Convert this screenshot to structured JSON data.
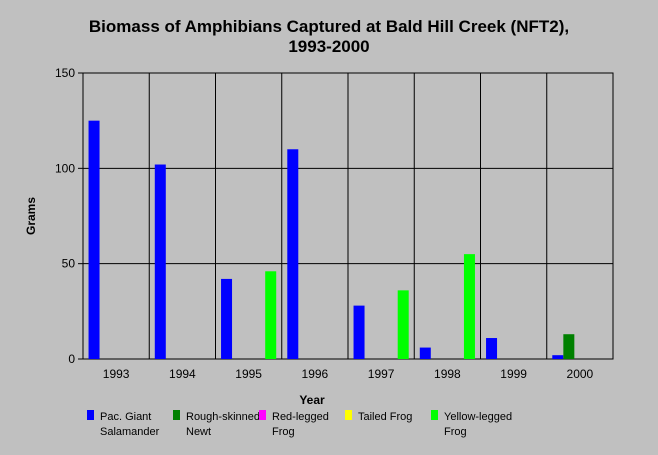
{
  "chart_data": {
    "type": "bar",
    "title_lines": [
      "Biomass of Amphibians Captured at Bald Hill Creek (NFT2),",
      "1993-2000"
    ],
    "xlabel": "Year",
    "ylabel": "Grams",
    "ylim": [
      0,
      150
    ],
    "yticks": [
      0,
      50,
      100,
      150
    ],
    "grid": true,
    "legend_position": "bottom",
    "categories": [
      "1993",
      "1994",
      "1995",
      "1996",
      "1997",
      "1998",
      "1999",
      "2000"
    ],
    "series": [
      {
        "name": "Pac. Giant Salamander",
        "legend_lines": [
          "Pac. Giant",
          "Salamander"
        ],
        "color": "#0000ff",
        "values": [
          125,
          102,
          42,
          110,
          28,
          6,
          11,
          2
        ]
      },
      {
        "name": "Rough-skinned Newt",
        "legend_lines": [
          "Rough-skinned",
          "Newt"
        ],
        "color": "#008000",
        "values": [
          0,
          0,
          0,
          0,
          0,
          0,
          0,
          13
        ]
      },
      {
        "name": "Red-legged Frog",
        "legend_lines": [
          "Red-legged",
          "Frog"
        ],
        "color": "#ff00ff",
        "values": [
          0,
          0,
          0,
          0,
          0,
          0,
          0,
          0
        ]
      },
      {
        "name": "Tailed Frog",
        "legend_lines": [
          "Tailed Frog"
        ],
        "color": "#ffff00",
        "values": [
          0,
          0,
          0,
          0,
          0,
          0,
          0,
          0
        ]
      },
      {
        "name": "Yellow-legged Frog",
        "legend_lines": [
          "Yellow-legged",
          "Frog"
        ],
        "color": "#00ff00",
        "values": [
          0,
          0,
          46,
          0,
          36,
          55,
          0,
          0
        ]
      }
    ]
  }
}
